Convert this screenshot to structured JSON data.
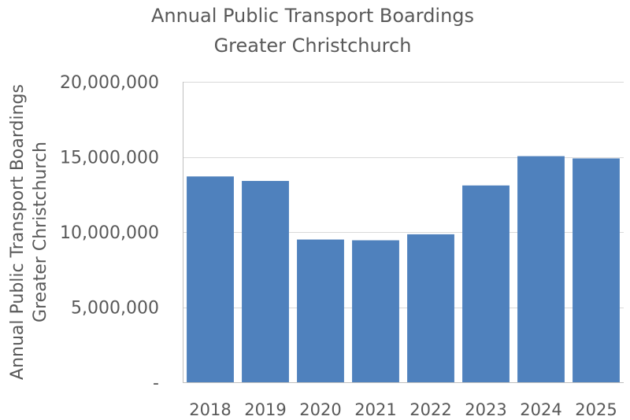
{
  "chart_data": {
    "type": "bar",
    "title": [
      "Annual Public Transport Boardings",
      "Greater Christchurch"
    ],
    "ylabel": [
      "Annual Public Transport Boardings",
      "Greater Christchurch"
    ],
    "xlabel": "",
    "categories": [
      "2018",
      "2019",
      "2020",
      "2021",
      "2022",
      "2023",
      "2024",
      "2025"
    ],
    "series": [
      {
        "name": "Annual Public Transport Boardings",
        "values": [
          13700000,
          13400000,
          9500000,
          9450000,
          9850000,
          13100000,
          15050000,
          14900000
        ],
        "color": "#4f81bd"
      }
    ],
    "ylim": [
      0,
      20000000
    ],
    "yticks": [
      0,
      5000000,
      10000000,
      15000000,
      20000000
    ],
    "ytick_labels": [
      "-",
      "5,000,000",
      "10,000,000",
      "15,000,000",
      "20,000,000"
    ],
    "grid": true,
    "legend": "none"
  },
  "colors": {
    "bar": "#4f81bd",
    "gridline": "#d9d9d9",
    "axis": "#bfbfbf",
    "text": "#595959"
  }
}
